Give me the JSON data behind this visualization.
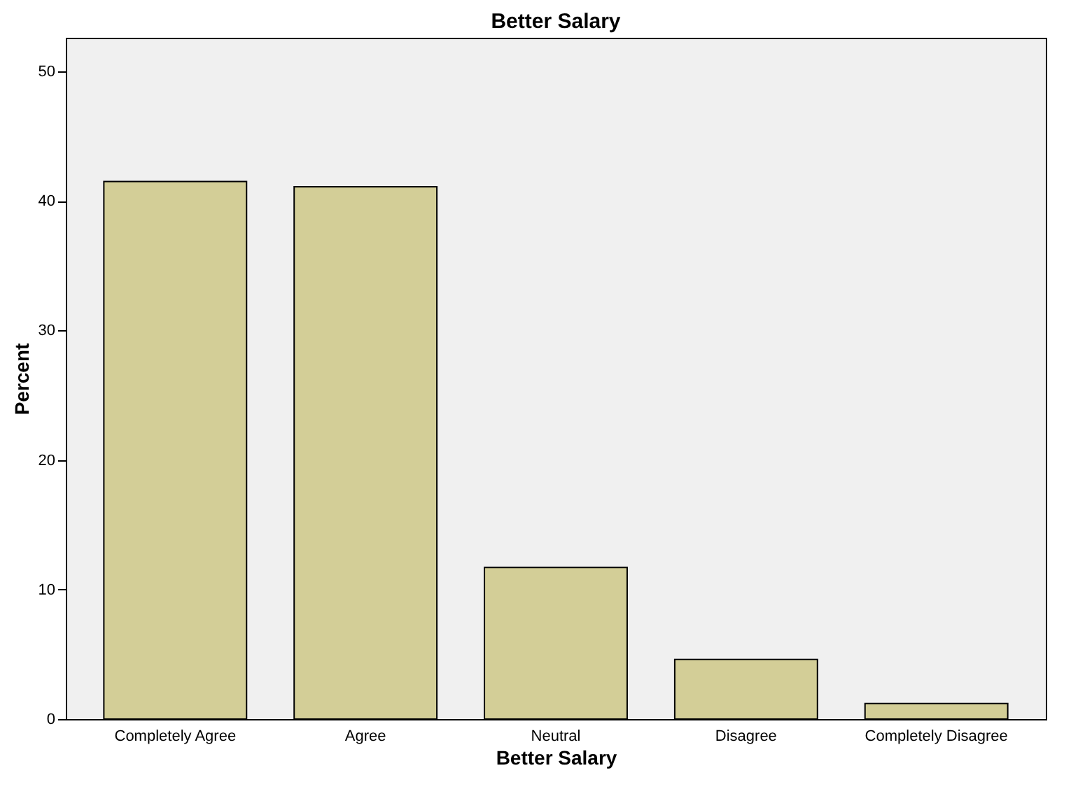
{
  "chart_data": {
    "type": "bar",
    "title": "Better Salary",
    "xlabel": "Better Salary",
    "ylabel": "Percent",
    "categories": [
      "Completely Agree",
      "Agree",
      "Neutral",
      "Disagree",
      "Completely Disagree"
    ],
    "values": [
      41.5,
      41.1,
      11.7,
      4.6,
      1.2
    ],
    "color": "#d3ce97",
    "ylim": [
      0,
      52.6
    ],
    "yticks": [
      0,
      10,
      20,
      30,
      40,
      50
    ],
    "grid": false
  }
}
